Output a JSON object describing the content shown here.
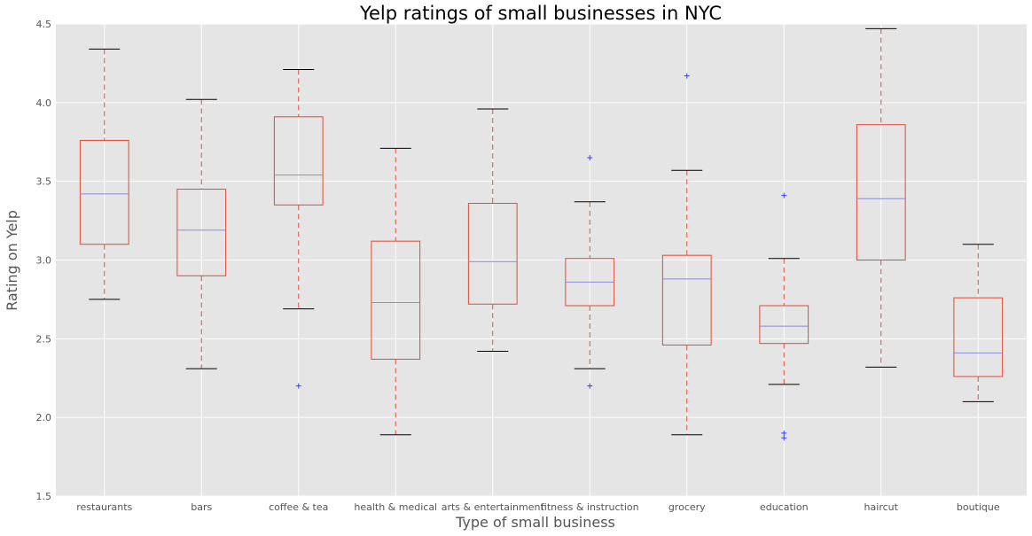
{
  "chart_data": {
    "type": "box",
    "title": "Yelp ratings of small businesses in NYC",
    "xlabel": "Type of small business",
    "ylabel": "Rating on Yelp",
    "ylim": [
      1.5,
      4.5
    ],
    "yticks": [
      "1.5",
      "2.0",
      "2.5",
      "3.0",
      "3.5",
      "4.0",
      "4.5"
    ],
    "grid": true,
    "colors": {
      "background": "#e5e5e5",
      "grid": "#ffffff",
      "box": "#e24a33",
      "median": "#8b8bd8",
      "whisker_cap": "#000000",
      "outlier": "#3b3bff"
    },
    "categories": [
      "restaurants",
      "bars",
      "coffee & tea",
      "health & medical",
      "arts & entertainment",
      "fitness & instruction",
      "grocery",
      "education",
      "haircut",
      "boutique"
    ],
    "boxes": [
      {
        "whisker_low": 2.75,
        "q1": 3.1,
        "median": 3.42,
        "q3": 3.76,
        "whisker_high": 4.34,
        "outliers": []
      },
      {
        "whisker_low": 2.31,
        "q1": 2.9,
        "median": 3.19,
        "q3": 3.45,
        "whisker_high": 4.02,
        "outliers": []
      },
      {
        "whisker_low": 2.69,
        "q1": 3.35,
        "median": 3.54,
        "q3": 3.91,
        "whisker_high": 4.21,
        "outliers": [
          2.2
        ]
      },
      {
        "whisker_low": 1.89,
        "q1": 2.37,
        "median": 2.73,
        "q3": 3.12,
        "whisker_high": 3.71,
        "outliers": []
      },
      {
        "whisker_low": 2.42,
        "q1": 2.72,
        "median": 2.99,
        "q3": 3.36,
        "whisker_high": 3.96,
        "outliers": []
      },
      {
        "whisker_low": 2.31,
        "q1": 2.71,
        "median": 2.86,
        "q3": 3.01,
        "whisker_high": 3.37,
        "outliers": [
          3.65,
          2.2
        ]
      },
      {
        "whisker_low": 1.89,
        "q1": 2.46,
        "median": 2.88,
        "q3": 3.03,
        "whisker_high": 3.57,
        "outliers": [
          4.17
        ]
      },
      {
        "whisker_low": 2.21,
        "q1": 2.47,
        "median": 2.58,
        "q3": 2.71,
        "whisker_high": 3.01,
        "outliers": [
          3.41,
          1.9,
          1.87
        ]
      },
      {
        "whisker_low": 2.32,
        "q1": 3.0,
        "median": 3.39,
        "q3": 3.86,
        "whisker_high": 4.47,
        "outliers": []
      },
      {
        "whisker_low": 2.1,
        "q1": 2.26,
        "median": 2.41,
        "q3": 2.76,
        "whisker_high": 3.1,
        "outliers": []
      }
    ]
  }
}
